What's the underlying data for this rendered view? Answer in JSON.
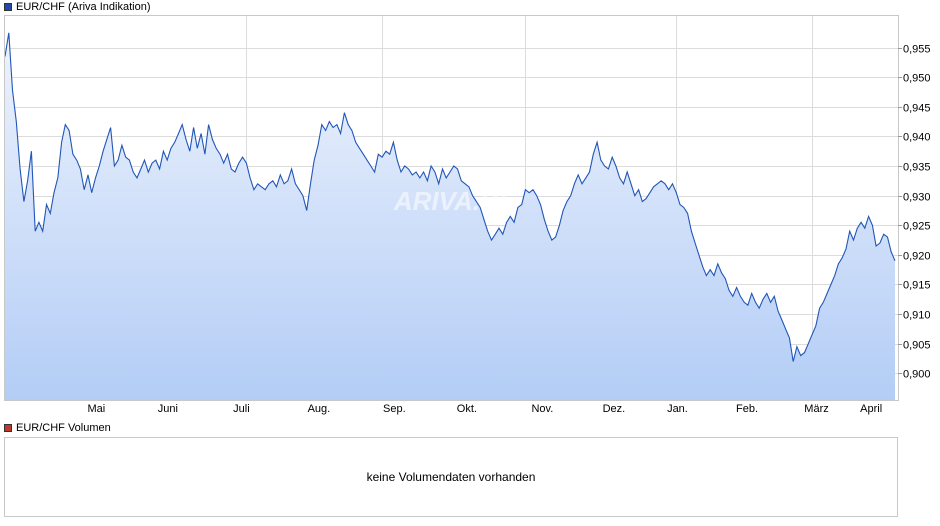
{
  "legend": {
    "price_label": "EUR/CHF (Ariva Indikation)",
    "price_color": "#1f4aa8",
    "volume_label": "EUR/CHF Volumen",
    "volume_color": "#c0392b"
  },
  "watermark": "ARIVA.DE",
  "volume_panel": {
    "message": "keine Volumendaten vorhanden"
  },
  "colors": {
    "line": "#2156b8",
    "fill_top": "#eef3fd",
    "fill_bottom": "#b3cdf6",
    "grid": "#dcdcdc"
  },
  "chart_data": {
    "type": "area",
    "title": "EUR/CHF (Ariva Indikation)",
    "xlabel": "",
    "ylabel": "",
    "grid": true,
    "ylim": [
      0.8955,
      0.9605
    ],
    "x_tick_labels": [
      "Mai",
      "Juni",
      "Juli",
      "Aug.",
      "Sep.",
      "Okt.",
      "Nov.",
      "Dez.",
      "Jan.",
      "Feb.",
      "März",
      "April"
    ],
    "y_ticks": [
      0.9,
      0.905,
      0.91,
      0.915,
      0.92,
      0.925,
      0.93,
      0.935,
      0.94,
      0.945,
      0.95,
      0.955
    ],
    "y_tick_labels": [
      "0,900",
      "0,905",
      "0,910",
      "0,915",
      "0,920",
      "0,925",
      "0,930",
      "0,935",
      "0,940",
      "0,945",
      "0,950",
      "0,955"
    ],
    "series": [
      {
        "values": [
          0.9535,
          0.9575,
          0.9478,
          0.9425,
          0.9345,
          0.929,
          0.9325,
          0.9375,
          0.924,
          0.9255,
          0.924,
          0.9285,
          0.927,
          0.9305,
          0.933,
          0.939,
          0.942,
          0.941,
          0.937,
          0.936,
          0.9345,
          0.931,
          0.9335,
          0.9305,
          0.933,
          0.935,
          0.9375,
          0.9395,
          0.9415,
          0.935,
          0.936,
          0.9385,
          0.9365,
          0.936,
          0.934,
          0.933,
          0.9345,
          0.936,
          0.934,
          0.9355,
          0.936,
          0.9345,
          0.9375,
          0.936,
          0.938,
          0.939,
          0.9405,
          0.942,
          0.9395,
          0.9375,
          0.9415,
          0.938,
          0.9405,
          0.937,
          0.942,
          0.9395,
          0.938,
          0.937,
          0.9355,
          0.937,
          0.9345,
          0.934,
          0.9355,
          0.9365,
          0.9355,
          0.933,
          0.931,
          0.932,
          0.9315,
          0.931,
          0.932,
          0.9325,
          0.9315,
          0.9335,
          0.932,
          0.9325,
          0.9345,
          0.932,
          0.931,
          0.93,
          0.9275,
          0.932,
          0.936,
          0.9385,
          0.942,
          0.941,
          0.9425,
          0.9415,
          0.942,
          0.9405,
          0.944,
          0.942,
          0.941,
          0.939,
          0.938,
          0.937,
          0.936,
          0.935,
          0.934,
          0.937,
          0.9365,
          0.9375,
          0.937,
          0.939,
          0.936,
          0.934,
          0.935,
          0.9345,
          0.9335,
          0.934,
          0.933,
          0.934,
          0.9325,
          0.935,
          0.934,
          0.932,
          0.9345,
          0.933,
          0.934,
          0.935,
          0.9345,
          0.9325,
          0.932,
          0.9315,
          0.93,
          0.929,
          0.928,
          0.926,
          0.924,
          0.9225,
          0.9235,
          0.9245,
          0.9235,
          0.9255,
          0.9265,
          0.9255,
          0.928,
          0.9285,
          0.931,
          0.9305,
          0.931,
          0.93,
          0.9285,
          0.926,
          0.924,
          0.9225,
          0.923,
          0.925,
          0.9275,
          0.929,
          0.93,
          0.932,
          0.9335,
          0.932,
          0.933,
          0.934,
          0.937,
          0.939,
          0.936,
          0.935,
          0.9345,
          0.9365,
          0.935,
          0.933,
          0.932,
          0.934,
          0.932,
          0.93,
          0.931,
          0.929,
          0.9295,
          0.9305,
          0.9315,
          0.932,
          0.9325,
          0.932,
          0.931,
          0.932,
          0.9305,
          0.9285,
          0.928,
          0.927,
          0.924,
          0.922,
          0.92,
          0.918,
          0.9165,
          0.9175,
          0.9165,
          0.9185,
          0.917,
          0.916,
          0.914,
          0.913,
          0.9145,
          0.913,
          0.912,
          0.9115,
          0.9135,
          0.912,
          0.911,
          0.9125,
          0.9135,
          0.912,
          0.913,
          0.9105,
          0.909,
          0.9075,
          0.906,
          0.902,
          0.9045,
          0.903,
          0.9035,
          0.905,
          0.9065,
          0.908,
          0.911,
          0.912,
          0.9135,
          0.915,
          0.9165,
          0.9185,
          0.9195,
          0.921,
          0.924,
          0.9225,
          0.9245,
          0.9255,
          0.9245,
          0.9265,
          0.925,
          0.9215,
          0.922,
          0.9235,
          0.923,
          0.9205,
          0.919
        ]
      }
    ]
  }
}
